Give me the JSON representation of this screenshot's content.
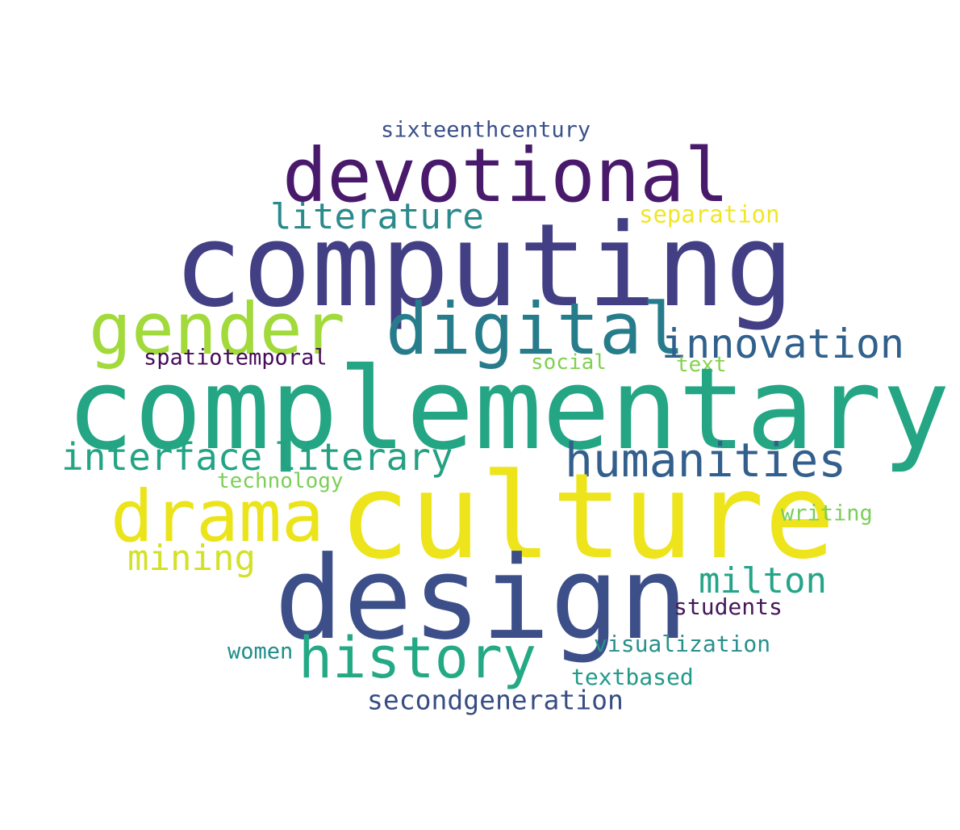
{
  "words": [
    {
      "id": "sixteenthcentury",
      "text": "sixteenthcentury",
      "color": "#3a5188"
    },
    {
      "id": "devotional",
      "text": "devotional",
      "color": "#491a6c"
    },
    {
      "id": "literature",
      "text": "literature",
      "color": "#2a8a8c"
    },
    {
      "id": "separation",
      "text": "separation",
      "color": "#f0e627"
    },
    {
      "id": "computing",
      "text": "computing",
      "color": "#433f84"
    },
    {
      "id": "gender",
      "text": "gender",
      "color": "#a1da3a"
    },
    {
      "id": "digital",
      "text": "digital",
      "color": "#277c8c"
    },
    {
      "id": "innovation",
      "text": "innovation",
      "color": "#30618c"
    },
    {
      "id": "spatiotemporal",
      "text": "spatiotemporal",
      "color": "#470b5c"
    },
    {
      "id": "social",
      "text": "social",
      "color": "#80d150"
    },
    {
      "id": "text",
      "text": "text",
      "color": "#85d24c"
    },
    {
      "id": "complementary",
      "text": "complementary",
      "color": "#24a584"
    },
    {
      "id": "interface",
      "text": "interface",
      "color": "#23a485"
    },
    {
      "id": "literary",
      "text": "literary",
      "color": "#25a083"
    },
    {
      "id": "humanities",
      "text": "humanities",
      "color": "#335f8c"
    },
    {
      "id": "technology",
      "text": "technology",
      "color": "#7bcf57"
    },
    {
      "id": "culture",
      "text": "culture",
      "color": "#ede41c"
    },
    {
      "id": "drama",
      "text": "drama",
      "color": "#ece41a"
    },
    {
      "id": "writing",
      "text": "writing",
      "color": "#79cf5a"
    },
    {
      "id": "mining",
      "text": "mining",
      "color": "#d3e129"
    },
    {
      "id": "milton",
      "text": "milton",
      "color": "#25a588"
    },
    {
      "id": "design",
      "text": "design",
      "color": "#3d4f89"
    },
    {
      "id": "students",
      "text": "students",
      "color": "#441858"
    },
    {
      "id": "visualization",
      "text": "visualization",
      "color": "#28908c"
    },
    {
      "id": "women",
      "text": "women",
      "color": "#1f8e8a"
    },
    {
      "id": "history",
      "text": "history",
      "color": "#24a985"
    },
    {
      "id": "textbased",
      "text": "textbased",
      "color": "#229a8a"
    },
    {
      "id": "secondgeneration",
      "text": "secondgeneration",
      "color": "#374d84"
    }
  ]
}
